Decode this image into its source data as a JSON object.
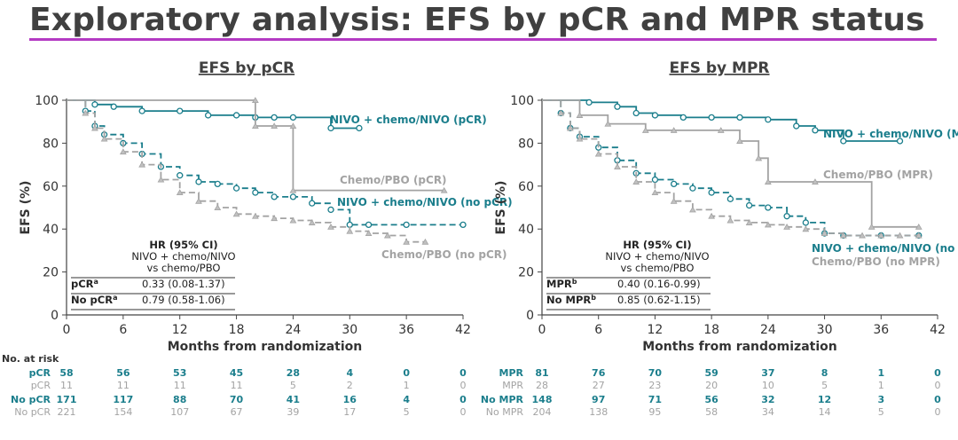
{
  "title": "Exploratory analysis: EFS by pCR and MPR status",
  "colors": {
    "teal": "#1b7e8c",
    "gray": "#a3a3a3",
    "accent": "#b43ac3"
  },
  "at_risk_heading": "No. at risk",
  "chart_data": [
    {
      "type": "line",
      "title": "EFS by pCR",
      "xlabel": "Months from randomization",
      "ylabel": "EFS (%)",
      "xlim": [
        0,
        42
      ],
      "ylim": [
        0,
        100
      ],
      "xticks": [
        "0",
        "6",
        "12",
        "18",
        "24",
        "30",
        "36",
        "42"
      ],
      "yticks": [
        "0",
        "20",
        "40",
        "60",
        "80",
        "100"
      ],
      "series": [
        {
          "name": "NIVO + chemo/NIVO (pCR)",
          "color": "teal",
          "dash": "solid",
          "x": [
            0,
            3,
            5,
            8,
            12,
            15,
            18,
            20,
            22,
            24,
            28,
            31
          ],
          "y": [
            100,
            98,
            97,
            95,
            95,
            93,
            93,
            92,
            92,
            92,
            87,
            87
          ]
        },
        {
          "name": "NIVO + chemo/NIVO (no pCR)",
          "color": "teal",
          "dash": "dashed",
          "x": [
            0,
            2,
            3,
            4,
            6,
            8,
            10,
            12,
            14,
            16,
            18,
            20,
            22,
            24,
            26,
            28,
            30,
            32,
            36,
            42
          ],
          "y": [
            100,
            95,
            88,
            84,
            80,
            75,
            69,
            65,
            62,
            61,
            59,
            57,
            55,
            55,
            52,
            49,
            42,
            42,
            42,
            42
          ]
        },
        {
          "name": "Chemo/PBO (pCR)",
          "color": "gray",
          "dash": "solid",
          "x": [
            0,
            20,
            20,
            22,
            24,
            24,
            40
          ],
          "y": [
            100,
            100,
            88,
            88,
            88,
            58,
            58
          ]
        },
        {
          "name": "Chemo/PBO (no pCR)",
          "color": "gray",
          "dash": "dashed",
          "x": [
            0,
            2,
            3,
            4,
            6,
            8,
            10,
            12,
            14,
            16,
            18,
            20,
            22,
            24,
            26,
            28,
            30,
            32,
            34,
            36,
            38
          ],
          "y": [
            100,
            94,
            87,
            82,
            76,
            70,
            63,
            57,
            53,
            50,
            47,
            46,
            45,
            44,
            43,
            41,
            39,
            38,
            37,
            34,
            34
          ]
        }
      ],
      "labels": [
        "NIVO + chemo/NIVO (pCR)",
        "Chemo/PBO (pCR)",
        "NIVO + chemo/NIVO (no pCR)",
        "Chemo/PBO (no pCR)"
      ],
      "hr_table": {
        "header": [
          "HR (95% CI)",
          "NIVO + chemo/NIVO",
          "vs chemo/PBO"
        ],
        "rows": [
          {
            "key": "pCR",
            "sup": "a",
            "value": "0.33 (0.08-1.37)"
          },
          {
            "key": "No pCR",
            "sup": "a",
            "value": "0.79 (0.58-1.06)"
          }
        ]
      },
      "at_risk": [
        {
          "label": "pCR",
          "color": "teal",
          "bold": true,
          "values": [
            "58",
            "56",
            "53",
            "45",
            "28",
            "4",
            "0",
            "0"
          ]
        },
        {
          "label": "pCR",
          "color": "gray",
          "bold": false,
          "values": [
            "11",
            "11",
            "11",
            "11",
            "5",
            "2",
            "1",
            "0"
          ]
        },
        {
          "label": "No pCR",
          "color": "teal",
          "bold": true,
          "values": [
            "171",
            "117",
            "88",
            "70",
            "41",
            "16",
            "4",
            "0"
          ]
        },
        {
          "label": "No pCR",
          "color": "gray",
          "bold": false,
          "values": [
            "221",
            "154",
            "107",
            "67",
            "39",
            "17",
            "5",
            "0"
          ]
        }
      ]
    },
    {
      "type": "line",
      "title": "EFS by MPR",
      "xlabel": "Months from randomization",
      "ylabel": "EFS (%)",
      "xlim": [
        0,
        42
      ],
      "ylim": [
        0,
        100
      ],
      "xticks": [
        "0",
        "6",
        "12",
        "18",
        "24",
        "30",
        "36",
        "42"
      ],
      "yticks": [
        "0",
        "20",
        "40",
        "60",
        "80",
        "100"
      ],
      "series": [
        {
          "name": "NIVO + chemo/NIVO (MPR)",
          "color": "teal",
          "dash": "solid",
          "x": [
            0,
            5,
            8,
            10,
            12,
            15,
            18,
            21,
            24,
            27,
            29,
            32,
            38
          ],
          "y": [
            100,
            99,
            97,
            94,
            93,
            92,
            92,
            92,
            91,
            88,
            86,
            81,
            81
          ]
        },
        {
          "name": "NIVO + chemo/NIVO (no MPR)",
          "color": "teal",
          "dash": "dashed",
          "x": [
            0,
            2,
            3,
            4,
            6,
            8,
            10,
            12,
            14,
            16,
            18,
            20,
            22,
            24,
            26,
            28,
            30,
            32,
            36,
            40
          ],
          "y": [
            100,
            94,
            87,
            83,
            78,
            72,
            66,
            63,
            61,
            59,
            57,
            54,
            51,
            50,
            46,
            43,
            38,
            37,
            37,
            37
          ]
        },
        {
          "name": "Chemo/PBO (MPR)",
          "color": "gray",
          "dash": "solid",
          "x": [
            0,
            4,
            7,
            11,
            14,
            19,
            21,
            23,
            24,
            29,
            35,
            40
          ],
          "y": [
            100,
            93,
            89,
            86,
            86,
            86,
            81,
            73,
            62,
            62,
            41,
            41
          ]
        },
        {
          "name": "Chemo/PBO (no MPR)",
          "color": "gray",
          "dash": "dashed",
          "x": [
            0,
            2,
            3,
            4,
            6,
            8,
            10,
            12,
            14,
            16,
            18,
            20,
            22,
            24,
            26,
            28,
            30,
            32,
            34,
            36,
            38,
            40
          ],
          "y": [
            100,
            94,
            87,
            82,
            75,
            69,
            62,
            57,
            53,
            49,
            46,
            44,
            43,
            42,
            41,
            40,
            38,
            37,
            37,
            37,
            37,
            37
          ]
        }
      ],
      "labels": [
        "NIVO + chemo/NIVO (MPR)",
        "Chemo/PBO (MPR)",
        "NIVO + chemo/NIVO (no MPR)",
        "Chemo/PBO (no MPR)"
      ],
      "hr_table": {
        "header": [
          "HR (95% CI)",
          "NIVO + chemo/NIVO",
          "vs chemo/PBO"
        ],
        "rows": [
          {
            "key": "MPR",
            "sup": "b",
            "value": "0.40 (0.16-0.99)"
          },
          {
            "key": "No MPR",
            "sup": "b",
            "value": "0.85 (0.62-1.15)"
          }
        ]
      },
      "at_risk": [
        {
          "label": "MPR",
          "color": "teal",
          "bold": true,
          "values": [
            "81",
            "76",
            "70",
            "59",
            "37",
            "8",
            "1",
            "0"
          ]
        },
        {
          "label": "MPR",
          "color": "gray",
          "bold": false,
          "values": [
            "28",
            "27",
            "23",
            "20",
            "10",
            "5",
            "1",
            "0"
          ]
        },
        {
          "label": "No MPR",
          "color": "teal",
          "bold": true,
          "values": [
            "148",
            "97",
            "71",
            "56",
            "32",
            "12",
            "3",
            "0"
          ]
        },
        {
          "label": "No MPR",
          "color": "gray",
          "bold": false,
          "values": [
            "204",
            "138",
            "95",
            "58",
            "34",
            "14",
            "5",
            "0"
          ]
        }
      ]
    }
  ]
}
